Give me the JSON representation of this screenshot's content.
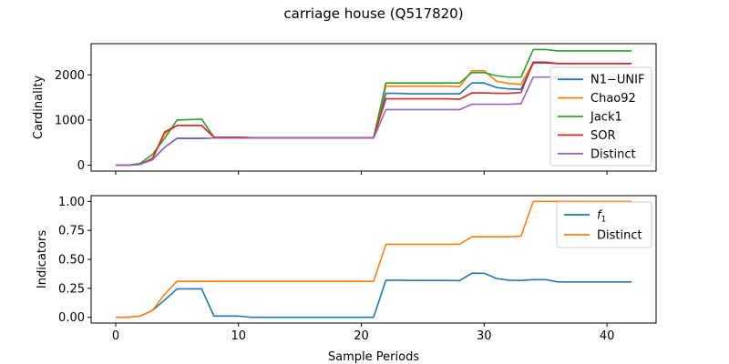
{
  "figure": {
    "title": "carriage house (Q517820)",
    "xlabel": "Sample Periods"
  },
  "chart_data": [
    {
      "type": "line",
      "ylabel": "Cardinality",
      "xlim": [
        -2,
        44
      ],
      "ylim": [
        -130,
        2690
      ],
      "xticks": [
        0,
        10,
        20,
        30,
        40
      ],
      "yticks": [
        0,
        1000,
        2000
      ],
      "ytick_labels": [
        "0",
        "1000",
        "2000"
      ],
      "grid": false,
      "legend_position": "right",
      "x": [
        0,
        1,
        2,
        3,
        4,
        5,
        6,
        7,
        8,
        9,
        10,
        11,
        12,
        13,
        14,
        15,
        16,
        17,
        18,
        19,
        20,
        21,
        22,
        23,
        24,
        25,
        26,
        27,
        28,
        29,
        30,
        31,
        32,
        33,
        34,
        35,
        36,
        37,
        38,
        39,
        40,
        41,
        42
      ],
      "series": [
        {
          "name": "N1−UNIF",
          "color": "#1f77b4",
          "values": [
            0,
            0,
            20,
            130,
            400,
            590,
            590,
            590,
            600,
            600,
            600,
            600,
            600,
            600,
            600,
            600,
            600,
            600,
            600,
            600,
            600,
            600,
            1590,
            1590,
            1580,
            1580,
            1580,
            1580,
            1580,
            1820,
            1820,
            1720,
            1690,
            1680,
            2260,
            2260,
            2250,
            2250,
            2250,
            2250,
            2250,
            2250,
            2250
          ]
        },
        {
          "name": "Chao92",
          "color": "#ff7f0e",
          "values": [
            0,
            0,
            20,
            150,
            700,
            880,
            880,
            880,
            620,
            620,
            620,
            610,
            610,
            610,
            610,
            610,
            610,
            610,
            610,
            610,
            610,
            610,
            1750,
            1750,
            1750,
            1750,
            1750,
            1750,
            1740,
            2090,
            2090,
            1860,
            1810,
            1790,
            2280,
            2280,
            2250,
            2250,
            2250,
            2250,
            2250,
            2250,
            2250
          ]
        },
        {
          "name": "Jack1",
          "color": "#2ca02c",
          "values": [
            0,
            0,
            40,
            240,
            600,
            1000,
            1010,
            1020,
            620,
            620,
            620,
            610,
            610,
            610,
            610,
            610,
            610,
            610,
            610,
            610,
            610,
            610,
            1820,
            1820,
            1820,
            1820,
            1820,
            1820,
            1820,
            2050,
            2050,
            1980,
            1950,
            1950,
            2560,
            2560,
            2530,
            2530,
            2530,
            2530,
            2530,
            2530,
            2530
          ]
        },
        {
          "name": "SOR",
          "color": "#d62728",
          "values": [
            0,
            0,
            20,
            150,
            740,
            880,
            880,
            880,
            620,
            620,
            620,
            610,
            610,
            610,
            610,
            610,
            610,
            610,
            610,
            610,
            610,
            610,
            1470,
            1470,
            1470,
            1470,
            1470,
            1470,
            1460,
            1600,
            1600,
            1590,
            1590,
            1610,
            2280,
            2280,
            2250,
            2250,
            2250,
            2250,
            2250,
            2250,
            2250
          ]
        },
        {
          "name": "Distinct",
          "color": "#9467bd",
          "values": [
            0,
            0,
            20,
            120,
            400,
            600,
            600,
            600,
            600,
            600,
            600,
            600,
            600,
            600,
            600,
            600,
            600,
            600,
            600,
            600,
            600,
            600,
            1230,
            1230,
            1230,
            1230,
            1230,
            1230,
            1230,
            1350,
            1350,
            1350,
            1350,
            1360,
            1950,
            1950,
            1950,
            1950,
            1950,
            1950,
            1950,
            1950,
            1950
          ]
        }
      ]
    },
    {
      "type": "line",
      "ylabel": "Indicators",
      "xlim": [
        -2,
        44
      ],
      "ylim": [
        -0.05,
        1.05
      ],
      "xticks": [
        0,
        10,
        20,
        30,
        40
      ],
      "xtick_labels": [
        "0",
        "10",
        "20",
        "30",
        "40"
      ],
      "yticks": [
        0,
        0.25,
        0.5,
        0.75,
        1.0
      ],
      "ytick_labels": [
        "0.00",
        "0.25",
        "0.50",
        "0.75",
        "1.00"
      ],
      "grid": false,
      "legend_position": "top-right",
      "x": [
        0,
        1,
        2,
        3,
        4,
        5,
        6,
        7,
        8,
        9,
        10,
        11,
        12,
        13,
        14,
        15,
        16,
        17,
        18,
        19,
        20,
        21,
        22,
        23,
        24,
        25,
        26,
        27,
        28,
        29,
        30,
        31,
        32,
        33,
        34,
        35,
        36,
        37,
        38,
        39,
        40,
        41,
        42
      ],
      "series": [
        {
          "name": "f1",
          "color": "#1f77b4",
          "values": [
            0,
            0,
            0.01,
            0.06,
            0.15,
            0.245,
            0.245,
            0.245,
            0.01,
            0.01,
            0.01,
            0.0,
            0.0,
            0.0,
            0.0,
            0.0,
            0.0,
            0.0,
            0.0,
            0.0,
            0.0,
            0.0,
            0.32,
            0.32,
            0.318,
            0.318,
            0.318,
            0.318,
            0.316,
            0.38,
            0.38,
            0.335,
            0.32,
            0.318,
            0.325,
            0.325,
            0.305,
            0.305,
            0.305,
            0.305,
            0.305,
            0.305,
            0.305
          ]
        },
        {
          "name": "Distinct",
          "color": "#ff7f0e",
          "values": [
            0,
            0,
            0.01,
            0.06,
            0.2,
            0.31,
            0.31,
            0.31,
            0.31,
            0.31,
            0.31,
            0.31,
            0.31,
            0.31,
            0.31,
            0.31,
            0.31,
            0.31,
            0.31,
            0.31,
            0.31,
            0.31,
            0.63,
            0.63,
            0.63,
            0.63,
            0.63,
            0.63,
            0.63,
            0.695,
            0.695,
            0.695,
            0.695,
            0.7,
            1.0,
            1.0,
            1.0,
            1.0,
            1.0,
            1.0,
            1.0,
            1.0,
            1.0
          ]
        }
      ]
    }
  ]
}
